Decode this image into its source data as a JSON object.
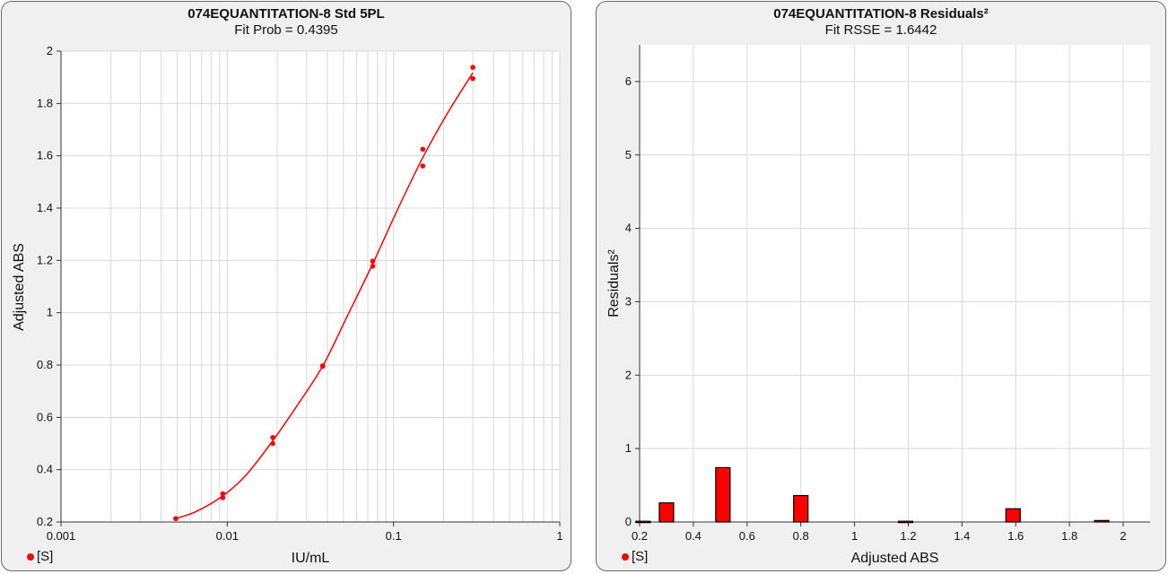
{
  "chart_data": [
    {
      "type": "scatter",
      "title": "074EQUANTITATION-8 Std 5PL",
      "subtitle": "Fit Prob = 0.4395",
      "xlabel": "IU/mL",
      "ylabel": "Adjusted ABS",
      "xscale": "log",
      "xlim": [
        0.001,
        1
      ],
      "ylim": [
        0.2,
        2
      ],
      "x_ticks": [
        "0.001",
        "0.01",
        "0.1",
        "1"
      ],
      "y_ticks": [
        "0.2",
        "0.4",
        "0.6",
        "0.8",
        "1",
        "1.2",
        "1.4",
        "1.6",
        "1.8",
        "2"
      ],
      "grid": true,
      "legend": "bottom-left",
      "series": [
        {
          "name": "[S]",
          "color": "#ff0000",
          "points": [
            [
              0.0049,
              0.213
            ],
            [
              0.0094,
              0.293
            ],
            [
              0.0094,
              0.308
            ],
            [
              0.0188,
              0.5
            ],
            [
              0.0188,
              0.523
            ],
            [
              0.0375,
              0.795
            ],
            [
              0.0375,
              0.797
            ],
            [
              0.075,
              1.178
            ],
            [
              0.075,
              1.197
            ],
            [
              0.15,
              1.561
            ],
            [
              0.15,
              1.625
            ],
            [
              0.3,
              1.895
            ],
            [
              0.3,
              1.938
            ]
          ]
        }
      ],
      "fit_curve": {
        "color": "#ff0000",
        "points": [
          [
            0.0049,
            0.213
          ],
          [
            0.0065,
            0.24
          ],
          [
            0.0094,
            0.3
          ],
          [
            0.013,
            0.38
          ],
          [
            0.0188,
            0.511
          ],
          [
            0.026,
            0.64
          ],
          [
            0.0375,
            0.796
          ],
          [
            0.053,
            0.99
          ],
          [
            0.075,
            1.187
          ],
          [
            0.105,
            1.39
          ],
          [
            0.15,
            1.593
          ],
          [
            0.21,
            1.76
          ],
          [
            0.3,
            1.917
          ]
        ]
      }
    },
    {
      "type": "bar",
      "title": "074EQUANTITATION-8 Residuals²",
      "subtitle": "Fit RSSE = 1.6442",
      "xlabel": "Adjusted ABS",
      "ylabel": "Residuals²",
      "xlim": [
        0.2,
        2.1
      ],
      "ylim": [
        0,
        6.5
      ],
      "x_ticks": [
        "0.2",
        "0.4",
        "0.6",
        "0.8",
        "1",
        "1.2",
        "1.4",
        "1.6",
        "1.8",
        "2"
      ],
      "y_ticks": [
        "0",
        "1",
        "2",
        "3",
        "4",
        "5",
        "6"
      ],
      "grid": true,
      "legend": "bottom-left",
      "series": [
        {
          "name": "[S]",
          "color": "#ff0000",
          "bars": [
            {
              "x": 0.213,
              "value": 0.01
            },
            {
              "x": 0.3,
              "value": 0.26
            },
            {
              "x": 0.51,
              "value": 0.74
            },
            {
              "x": 0.8,
              "value": 0.36
            },
            {
              "x": 1.19,
              "value": 0.01
            },
            {
              "x": 1.59,
              "value": 0.18
            },
            {
              "x": 1.92,
              "value": 0.02
            }
          ]
        }
      ]
    }
  ]
}
